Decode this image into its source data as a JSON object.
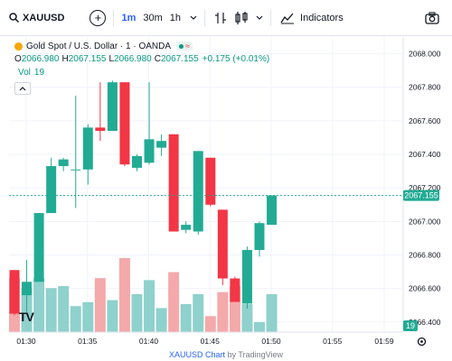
{
  "toolbar": {
    "symbol": "XAUUSD",
    "intervals": [
      "1m",
      "30m",
      "1h"
    ],
    "active_interval": "1m",
    "indicators_label": "Indicators",
    "icons": [
      "search-icon",
      "add-symbol-icon",
      "chevron-down-icon",
      "bar-style-icon",
      "compare-icon",
      "indicators-icon",
      "camera-icon"
    ]
  },
  "legend": {
    "title": "Gold Spot / U.S. Dollar · 1 · OANDA",
    "o_label": "O",
    "o": "2066.980",
    "h_label": "H",
    "h": "2067.155",
    "l_label": "L",
    "l": "2066.980",
    "c_label": "C",
    "c": "2067.155",
    "change": "+0.175 (+0.01%)",
    "vol_label": "Vol",
    "vol": "19",
    "market_status": "market-open",
    "market_approx": "≈"
  },
  "price_badge": "2067.155",
  "volume_badge": "19",
  "logo_text": "TV",
  "footer": {
    "link": "XAUUSD Chart",
    "by": "by TradingView"
  },
  "colors": {
    "up": "#22ab94",
    "down": "#f23645",
    "up_vol": "#8fd1cc",
    "down_vol": "#f4a9aa",
    "price_line": "#22ab94",
    "accent": "#2962ff"
  },
  "chart_data": {
    "type": "candlestick",
    "price_ticks": [
      "2068.000",
      "2067.800",
      "2067.600",
      "2067.400",
      "2067.200",
      "2067.000",
      "2066.800",
      "2066.600",
      "2066.400"
    ],
    "time_ticks": [
      "01:30",
      "01:35",
      "01:40",
      "01:45",
      "01:50",
      "01:55",
      "01:59"
    ],
    "ylim": [
      2066.34,
      2068.1
    ],
    "last_price": 2067.155,
    "candles": [
      {
        "o": 2066.71,
        "h": 2066.71,
        "l": 2066.44,
        "c": 2066.45
      },
      {
        "o": 2066.56,
        "h": 2066.77,
        "l": 2066.46,
        "c": 2066.64
      },
      {
        "o": 2066.64,
        "h": 2067.05,
        "l": 2066.64,
        "c": 2067.05
      },
      {
        "o": 2067.05,
        "h": 2067.38,
        "l": 2067.05,
        "c": 2067.33
      },
      {
        "o": 2067.33,
        "h": 2067.38,
        "l": 2067.3,
        "c": 2067.37
      },
      {
        "o": 2067.31,
        "h": 2067.75,
        "l": 2067.08,
        "c": 2067.31
      },
      {
        "o": 2067.31,
        "h": 2067.58,
        "l": 2067.22,
        "c": 2067.56
      },
      {
        "o": 2067.56,
        "h": 2067.83,
        "l": 2067.48,
        "c": 2067.54
      },
      {
        "o": 2067.54,
        "h": 2067.84,
        "l": 2067.54,
        "c": 2067.83
      },
      {
        "o": 2067.83,
        "h": 2067.83,
        "l": 2067.33,
        "c": 2067.34
      },
      {
        "o": 2067.32,
        "h": 2067.4,
        "l": 2067.3,
        "c": 2067.39
      },
      {
        "o": 2067.35,
        "h": 2067.83,
        "l": 2067.34,
        "c": 2067.49
      },
      {
        "o": 2067.44,
        "h": 2067.52,
        "l": 2067.39,
        "c": 2067.48
      },
      {
        "o": 2067.52,
        "h": 2067.52,
        "l": 2066.94,
        "c": 2066.94
      },
      {
        "o": 2066.95,
        "h": 2067.0,
        "l": 2066.93,
        "c": 2066.98
      },
      {
        "o": 2066.94,
        "h": 2067.42,
        "l": 2066.92,
        "c": 2067.42
      },
      {
        "o": 2067.38,
        "h": 2067.38,
        "l": 2067.09,
        "c": 2067.1
      },
      {
        "o": 2067.07,
        "h": 2067.07,
        "l": 2066.62,
        "c": 2066.66
      },
      {
        "o": 2066.66,
        "h": 2066.67,
        "l": 2066.52,
        "c": 2066.52
      },
      {
        "o": 2066.51,
        "h": 2066.85,
        "l": 2066.48,
        "c": 2066.83
      },
      {
        "o": 2066.83,
        "h": 2067.0,
        "l": 2066.79,
        "c": 2066.99
      },
      {
        "o": 2066.98,
        "h": 2067.155,
        "l": 2066.98,
        "c": 2067.155
      }
    ],
    "volumes": [
      27,
      22,
      27,
      22,
      23,
      13,
      15,
      27,
      16,
      37,
      19,
      26,
      12,
      30,
      14,
      19,
      8,
      20,
      23,
      14,
      5,
      19
    ]
  }
}
